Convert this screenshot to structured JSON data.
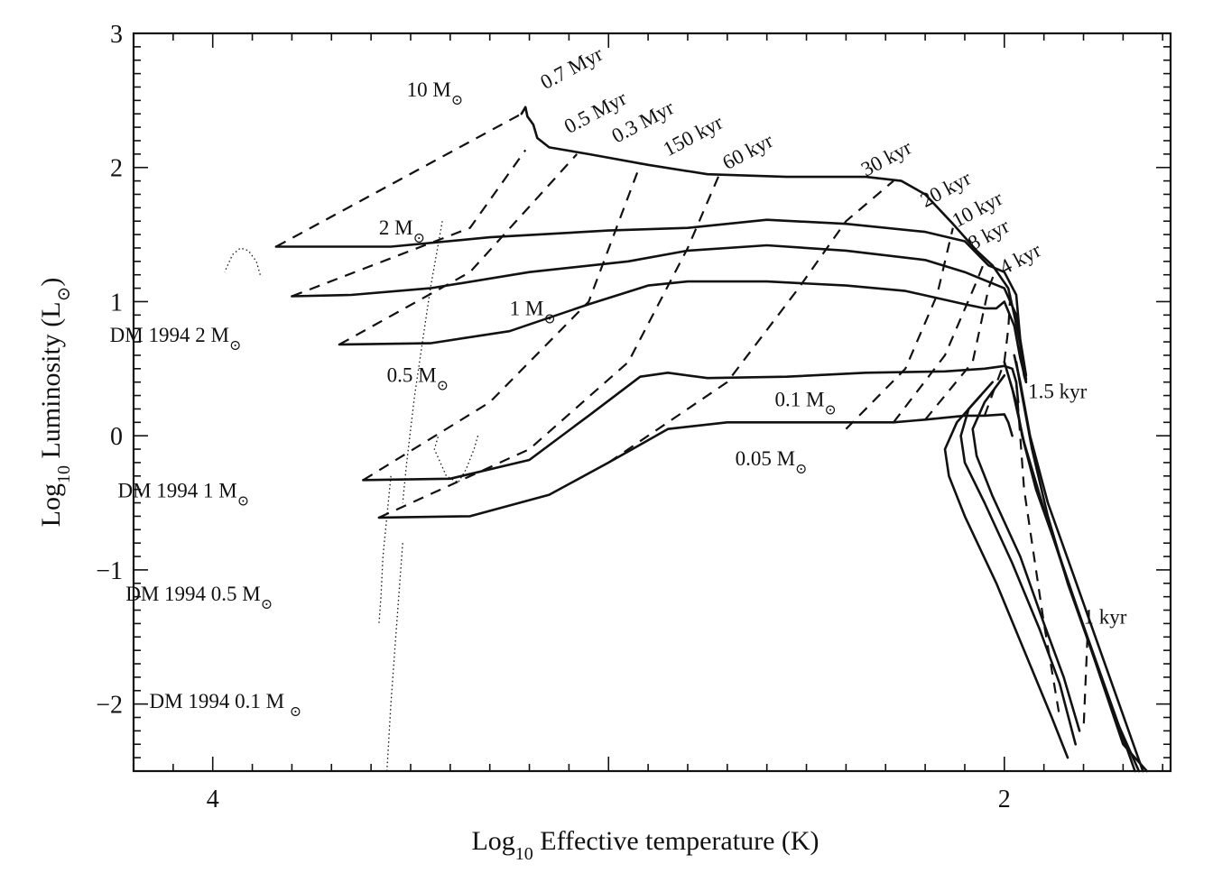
{
  "chart_data": {
    "type": "line",
    "title": "",
    "xlabel": {
      "main": "Log",
      "sub": "10",
      "rest": " Effective temperature (K)"
    },
    "ylabel": {
      "main": "Log",
      "sub": "10",
      "rest": " Luminosity (L",
      "sun": "⊙",
      "close": ")"
    },
    "xlim": [
      4.2,
      1.58
    ],
    "x_reversed": true,
    "ylim": [
      -2.5,
      3.0
    ],
    "xticks": [
      {
        "value": 4,
        "label": "4"
      },
      {
        "value": 2,
        "label": "2"
      }
    ],
    "yticks": [
      {
        "value": 3,
        "label": "3"
      },
      {
        "value": 2,
        "label": "2"
      },
      {
        "value": 1,
        "label": "1"
      },
      {
        "value": 0,
        "label": "0"
      },
      {
        "value": -1,
        "label": "−1"
      },
      {
        "value": -2,
        "label": "−2"
      }
    ],
    "grid": false,
    "tracks": [
      {
        "name": "10 M",
        "points": [
          [
            3.22,
            2.4
          ],
          [
            3.21,
            2.45
          ],
          [
            3.205,
            2.38
          ],
          [
            3.19,
            2.32
          ],
          [
            3.18,
            2.22
          ],
          [
            3.15,
            2.15
          ],
          [
            3.05,
            2.1
          ],
          [
            2.9,
            2.02
          ],
          [
            2.75,
            1.95
          ],
          [
            2.55,
            1.93
          ],
          [
            2.35,
            1.93
          ],
          [
            2.26,
            1.9
          ],
          [
            2.2,
            1.8
          ],
          [
            2.13,
            1.58
          ],
          [
            2.07,
            1.38
          ],
          [
            2.03,
            1.27
          ],
          [
            1.99,
            1.1
          ],
          [
            1.975,
            0.9
          ],
          [
            1.96,
            0.68
          ],
          [
            1.955,
            0.55
          ],
          [
            1.95,
            0.45
          ],
          [
            1.945,
            0.4
          ]
        ]
      },
      {
        "name": "2 M",
        "points": [
          [
            3.84,
            1.41
          ],
          [
            3.55,
            1.41
          ],
          [
            3.3,
            1.48
          ],
          [
            3.0,
            1.53
          ],
          [
            2.8,
            1.55
          ],
          [
            2.6,
            1.61
          ],
          [
            2.4,
            1.58
          ],
          [
            2.2,
            1.52
          ],
          [
            2.1,
            1.45
          ],
          [
            2.04,
            1.27
          ],
          [
            2.0,
            1.22
          ],
          [
            1.97,
            1.05
          ],
          [
            1.96,
            0.72
          ],
          [
            1.945,
            0.45
          ]
        ]
      },
      {
        "name": "",
        "points": [
          [
            3.8,
            1.04
          ],
          [
            3.65,
            1.05
          ],
          [
            3.45,
            1.1
          ],
          [
            3.2,
            1.22
          ],
          [
            2.95,
            1.3
          ],
          [
            2.8,
            1.38
          ],
          [
            2.6,
            1.42
          ],
          [
            2.4,
            1.38
          ],
          [
            2.2,
            1.31
          ],
          [
            2.1,
            1.22
          ],
          [
            2.05,
            1.16
          ],
          [
            2.0,
            1.1
          ],
          [
            1.97,
            0.9
          ],
          [
            1.955,
            0.6
          ],
          [
            1.945,
            0.42
          ]
        ]
      },
      {
        "name": "1 M",
        "points": [
          [
            3.68,
            0.68
          ],
          [
            3.45,
            0.69
          ],
          [
            3.25,
            0.78
          ],
          [
            3.05,
            0.98
          ],
          [
            2.9,
            1.12
          ],
          [
            2.8,
            1.15
          ],
          [
            2.6,
            1.15
          ],
          [
            2.4,
            1.12
          ],
          [
            2.25,
            1.08
          ],
          [
            2.1,
            0.98
          ],
          [
            2.05,
            0.95
          ],
          [
            2.02,
            0.95
          ],
          [
            2.0,
            1.0
          ],
          [
            1.975,
            0.82
          ],
          [
            1.96,
            0.58
          ],
          [
            1.945,
            0.4
          ]
        ]
      },
      {
        "name": "0.1 M",
        "points": [
          [
            3.62,
            -0.33
          ],
          [
            3.4,
            -0.32
          ],
          [
            3.2,
            -0.18
          ],
          [
            3.05,
            0.15
          ],
          [
            2.92,
            0.44
          ],
          [
            2.85,
            0.47
          ],
          [
            2.75,
            0.43
          ],
          [
            2.55,
            0.44
          ],
          [
            2.35,
            0.47
          ],
          [
            2.15,
            0.48
          ],
          [
            2.05,
            0.5
          ],
          [
            2.0,
            0.52
          ],
          [
            1.98,
            0.5
          ],
          [
            1.97,
            0.4
          ],
          [
            1.965,
            0.25
          ]
        ]
      },
      {
        "name": "0.05 M",
        "points": [
          [
            3.58,
            -0.61
          ],
          [
            3.35,
            -0.6
          ],
          [
            3.15,
            -0.44
          ],
          [
            3.0,
            -0.2
          ],
          [
            2.85,
            0.05
          ],
          [
            2.7,
            0.1
          ],
          [
            2.52,
            0.1
          ],
          [
            2.4,
            0.1
          ],
          [
            2.28,
            0.1
          ],
          [
            2.2,
            0.12
          ],
          [
            2.1,
            0.15
          ],
          [
            2.05,
            0.15
          ],
          [
            2.0,
            0.16
          ],
          [
            1.99,
            0.1
          ],
          [
            1.98,
            0.0
          ]
        ]
      },
      {
        "name": "",
        "points": [
          [
            1.985,
            0.4
          ],
          [
            1.97,
            0.25
          ],
          [
            1.955,
            0.0
          ],
          [
            1.92,
            -0.4
          ],
          [
            1.86,
            -0.9
          ],
          [
            1.78,
            -1.6
          ],
          [
            1.7,
            -2.3
          ],
          [
            1.64,
            -2.5
          ]
        ]
      },
      {
        "name": "",
        "points": [
          [
            1.97,
            0.55
          ],
          [
            1.955,
            0.3
          ],
          [
            1.93,
            -0.1
          ],
          [
            1.89,
            -0.6
          ],
          [
            1.84,
            -1.1
          ],
          [
            1.78,
            -1.6
          ],
          [
            1.72,
            -2.1
          ],
          [
            1.66,
            -2.5
          ]
        ]
      },
      {
        "name": "",
        "points": [
          [
            2.0,
            0.55
          ],
          [
            1.98,
            0.35
          ],
          [
            1.95,
            -0.05
          ],
          [
            1.9,
            -0.55
          ],
          [
            1.85,
            -1.0
          ],
          [
            1.79,
            -1.5
          ],
          [
            1.73,
            -2.0
          ],
          [
            1.67,
            -2.5
          ]
        ]
      },
      {
        "name": "",
        "points": [
          [
            1.975,
            0.6
          ],
          [
            1.96,
            0.4
          ],
          [
            1.935,
            0.0
          ],
          [
            1.89,
            -0.5
          ],
          [
            1.83,
            -1.0
          ],
          [
            1.77,
            -1.5
          ],
          [
            1.71,
            -2.0
          ],
          [
            1.65,
            -2.5
          ]
        ]
      },
      {
        "name": "",
        "points": [
          [
            2.06,
            0.3
          ],
          [
            2.12,
            0.1
          ],
          [
            2.15,
            -0.1
          ],
          [
            2.14,
            -0.3
          ],
          [
            2.1,
            -0.6
          ],
          [
            2.02,
            -1.1
          ],
          [
            1.95,
            -1.6
          ],
          [
            1.88,
            -2.1
          ],
          [
            1.84,
            -2.4
          ]
        ]
      },
      {
        "name": "",
        "points": [
          [
            2.03,
            0.4
          ],
          [
            2.09,
            0.2
          ],
          [
            2.11,
            0.0
          ],
          [
            2.1,
            -0.2
          ],
          [
            2.05,
            -0.5
          ],
          [
            1.98,
            -0.95
          ],
          [
            1.91,
            -1.45
          ],
          [
            1.86,
            -1.85
          ],
          [
            1.82,
            -2.3
          ]
        ]
      },
      {
        "name": "",
        "points": [
          [
            2.0,
            0.45
          ],
          [
            2.05,
            0.25
          ],
          [
            2.08,
            0.05
          ],
          [
            2.07,
            -0.15
          ],
          [
            2.03,
            -0.45
          ],
          [
            1.96,
            -0.9
          ],
          [
            1.9,
            -1.4
          ],
          [
            1.85,
            -1.8
          ],
          [
            1.81,
            -2.2
          ]
        ]
      }
    ],
    "dm1994": [
      {
        "name": "DM 1994 2 M",
        "points": [
          [
            3.42,
            1.6
          ],
          [
            3.45,
            1.1
          ],
          [
            3.47,
            0.7
          ],
          [
            3.49,
            0.3
          ],
          [
            3.51,
            -0.2
          ],
          [
            3.52,
            -0.5
          ]
        ]
      },
      {
        "name": "",
        "points": [
          [
            3.88,
            1.2
          ],
          [
            3.89,
            1.3
          ],
          [
            3.91,
            1.38
          ],
          [
            3.93,
            1.4
          ],
          [
            3.95,
            1.35
          ],
          [
            3.97,
            1.22
          ]
        ]
      },
      {
        "name": "DM 1994 1 M",
        "points": [
          [
            3.33,
            0.0
          ],
          [
            3.34,
            -0.1
          ],
          [
            3.36,
            -0.25
          ],
          [
            3.38,
            -0.35
          ],
          [
            3.41,
            -0.3
          ],
          [
            3.44,
            -0.1
          ],
          [
            3.43,
            0.0
          ]
        ]
      },
      {
        "name": "DM 1994 0.5 M",
        "points": [
          [
            3.55,
            -0.3
          ],
          [
            3.56,
            -0.6
          ],
          [
            3.57,
            -0.9
          ],
          [
            3.575,
            -1.2
          ],
          [
            3.58,
            -1.4
          ]
        ]
      },
      {
        "name": "DM 1994 0.1 M",
        "points": [
          [
            3.52,
            -0.8
          ],
          [
            3.53,
            -1.2
          ],
          [
            3.54,
            -1.6
          ],
          [
            3.55,
            -2.0
          ],
          [
            3.56,
            -2.5
          ]
        ]
      }
    ],
    "isochrones": [
      {
        "label": "0.7 Myr",
        "points": [
          [
            3.84,
            1.41
          ],
          [
            3.22,
            2.4
          ]
        ]
      },
      {
        "label": "0.5 Myr",
        "points": [
          [
            3.8,
            1.04
          ],
          [
            3.35,
            1.55
          ],
          [
            3.21,
            2.13
          ]
        ]
      },
      {
        "label": "0.3 Myr",
        "points": [
          [
            3.68,
            0.68
          ],
          [
            3.35,
            1.22
          ],
          [
            3.08,
            2.1
          ]
        ]
      },
      {
        "label": "150 kyr",
        "points": [
          [
            3.62,
            -0.33
          ],
          [
            3.3,
            0.25
          ],
          [
            3.05,
            1.0
          ],
          [
            2.92,
            2.02
          ]
        ]
      },
      {
        "label": "60 kyr",
        "points": [
          [
            3.58,
            -0.61
          ],
          [
            3.2,
            -0.1
          ],
          [
            2.95,
            0.55
          ],
          [
            2.8,
            1.4
          ],
          [
            2.72,
            1.95
          ]
        ]
      },
      {
        "label": "30 kyr",
        "points": [
          [
            3.0,
            -0.2
          ],
          [
            2.7,
            0.4
          ],
          [
            2.52,
            1.1
          ],
          [
            2.4,
            1.6
          ],
          [
            2.28,
            1.9
          ]
        ]
      },
      {
        "label": "20 kyr",
        "points": [
          [
            2.4,
            0.05
          ],
          [
            2.25,
            0.5
          ],
          [
            2.17,
            1.05
          ],
          [
            2.13,
            1.55
          ]
        ]
      },
      {
        "label": "10 kyr",
        "points": [
          [
            2.28,
            0.1
          ],
          [
            2.15,
            0.6
          ],
          [
            2.07,
            1.15
          ],
          [
            2.05,
            1.3
          ]
        ]
      },
      {
        "label": "8 kyr",
        "points": [
          [
            2.2,
            0.12
          ],
          [
            2.08,
            0.55
          ],
          [
            2.04,
            1.1
          ],
          [
            2.02,
            1.25
          ]
        ]
      },
      {
        "label": "4 kyr",
        "points": [
          [
            2.05,
            0.15
          ],
          [
            2.0,
            0.55
          ],
          [
            1.99,
            0.8
          ],
          [
            1.985,
            1.05
          ]
        ]
      },
      {
        "label": "1.5 kyr",
        "points": [
          [
            1.97,
            0.4
          ],
          [
            1.95,
            -0.4
          ],
          [
            1.9,
            -1.4
          ],
          [
            1.86,
            -2.1
          ]
        ]
      },
      {
        "label": "1 kyr",
        "points": [
          [
            1.79,
            -1.5
          ],
          [
            1.8,
            -2.2
          ]
        ]
      }
    ],
    "annotations": [
      {
        "text": "10 M",
        "sun": "⊙",
        "x": 3.51,
        "y": 2.53
      },
      {
        "text": "0.7 Myr",
        "sun": "",
        "x": 3.16,
        "y": 2.58,
        "rot": -28
      },
      {
        "text": "0.5 Myr",
        "sun": "",
        "x": 3.1,
        "y": 2.25,
        "rot": -28
      },
      {
        "text": "0.3 Myr",
        "sun": "",
        "x": 2.98,
        "y": 2.18,
        "rot": -28
      },
      {
        "text": "150 kyr",
        "sun": "",
        "x": 2.85,
        "y": 2.08,
        "rot": -28
      },
      {
        "text": "60 kyr",
        "sun": "",
        "x": 2.7,
        "y": 1.98,
        "rot": -28
      },
      {
        "text": "30 kyr",
        "sun": "",
        "x": 2.35,
        "y": 1.93,
        "rot": -28
      },
      {
        "text": "20 kyr",
        "sun": "",
        "x": 2.2,
        "y": 1.7,
        "rot": -28
      },
      {
        "text": "10 kyr",
        "sun": "",
        "x": 2.12,
        "y": 1.55,
        "rot": -28
      },
      {
        "text": "8 kyr",
        "sun": "",
        "x": 2.08,
        "y": 1.38,
        "rot": -28
      },
      {
        "text": "4 kyr",
        "sun": "",
        "x": 2.0,
        "y": 1.2,
        "rot": -28
      },
      {
        "text": "2 M",
        "sun": "⊙",
        "x": 3.58,
        "y": 1.5
      },
      {
        "text": "1 M",
        "sun": "⊙",
        "x": 3.25,
        "y": 0.9
      },
      {
        "text": "0.5 M",
        "sun": "⊙",
        "x": 3.56,
        "y": 0.4
      },
      {
        "text": "0.1 M",
        "sun": "⊙",
        "x": 2.58,
        "y": 0.22
      },
      {
        "text": "0.05 M",
        "sun": "⊙",
        "x": 2.68,
        "y": -0.22
      },
      {
        "text": "1.5 kyr",
        "sun": "",
        "x": 1.94,
        "y": 0.28
      },
      {
        "text": "1 kyr",
        "sun": "",
        "x": 1.8,
        "y": -1.4
      },
      {
        "text": "DM 1994 2 M",
        "sun": "⊙",
        "x": 4.26,
        "y": 0.7
      },
      {
        "text": "DM 1994 1 M",
        "sun": "⊙",
        "x": 4.24,
        "y": -0.46
      },
      {
        "text": "DM 1994 0.5 M",
        "sun": "⊙",
        "x": 4.22,
        "y": -1.23
      },
      {
        "text": "DM 1994 0.1 M ",
        "sun": "⊙",
        "x": 4.16,
        "y": -2.03
      }
    ]
  }
}
